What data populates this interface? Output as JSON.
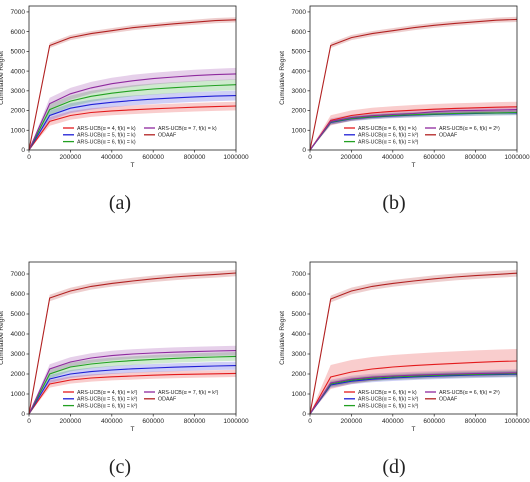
{
  "figure": {
    "captions": [
      "(a)",
      "(b)",
      "(c)",
      "(d)"
    ]
  },
  "chart_data": [
    {
      "type": "line",
      "caption": "(a)",
      "xlabel": "T",
      "ylabel": "Cumulative Regret",
      "xlim": [
        0,
        1000000
      ],
      "ylim": [
        0,
        7300
      ],
      "x_ticks": [
        0,
        200000,
        400000,
        600000,
        800000,
        1000000
      ],
      "x_tick_labels": [
        "0",
        "200000",
        "400000",
        "600000",
        "800000",
        "1000000"
      ],
      "y_ticks": [
        0,
        1000,
        2000,
        3000,
        4000,
        5000,
        6000,
        7000
      ],
      "y_tick_labels": [
        "0",
        "1000",
        "2000",
        "3000",
        "4000",
        "5000",
        "6000",
        "7000"
      ],
      "legend_position": "lower-center",
      "legend_columns": 2,
      "x": [
        0,
        100000,
        200000,
        300000,
        400000,
        500000,
        600000,
        700000,
        800000,
        900000,
        1000000
      ],
      "series": [
        {
          "name": "ARS-UCB(α = 4, f(k) = k)",
          "color": "#e31a1c",
          "values": [
            0,
            1450,
            1750,
            1900,
            1980,
            2040,
            2090,
            2130,
            2170,
            2200,
            2230
          ],
          "band": 220
        },
        {
          "name": "ARS-UCB(α = 5, f(k) = k)",
          "color": "#1f1fd6",
          "values": [
            0,
            1750,
            2120,
            2300,
            2420,
            2510,
            2580,
            2640,
            2690,
            2730,
            2760
          ],
          "band": 250
        },
        {
          "name": "ARS-UCB(α = 6, f(k) = k)",
          "color": "#22a022",
          "values": [
            0,
            2050,
            2480,
            2720,
            2880,
            3000,
            3090,
            3160,
            3220,
            3270,
            3310
          ],
          "band": 280
        },
        {
          "name": "ARS-UCB(α = 7, f(k) = k)",
          "color": "#8e2a9e",
          "values": [
            0,
            2350,
            2850,
            3150,
            3360,
            3510,
            3620,
            3700,
            3770,
            3820,
            3860
          ],
          "band": 300
        },
        {
          "name": "ODAAF",
          "color": "#b22222",
          "values": [
            0,
            5300,
            5700,
            5900,
            6050,
            6200,
            6300,
            6400,
            6480,
            6560,
            6600
          ],
          "band": 130
        }
      ]
    },
    {
      "type": "line",
      "caption": "(b)",
      "xlabel": "T",
      "ylabel": "Cumulative Regret",
      "xlim": [
        0,
        1000000
      ],
      "ylim": [
        0,
        7300
      ],
      "x_ticks": [
        0,
        200000,
        400000,
        600000,
        800000,
        1000000
      ],
      "x_tick_labels": [
        "0",
        "200000",
        "400000",
        "600000",
        "800000",
        "1000000"
      ],
      "y_ticks": [
        0,
        1000,
        2000,
        3000,
        4000,
        5000,
        6000,
        7000
      ],
      "y_tick_labels": [
        "0",
        "1000",
        "2000",
        "3000",
        "4000",
        "5000",
        "6000",
        "7000"
      ],
      "legend_position": "lower-center",
      "legend_columns": 2,
      "x": [
        0,
        100000,
        200000,
        300000,
        400000,
        500000,
        600000,
        700000,
        800000,
        900000,
        1000000
      ],
      "series": [
        {
          "name": "ARS-UCB(α = 6, f(k) = k)",
          "color": "#e31a1c",
          "values": [
            0,
            1500,
            1750,
            1880,
            1960,
            2020,
            2070,
            2110,
            2140,
            2170,
            2190
          ],
          "band": 260
        },
        {
          "name": "ARS-UCB(α = 6, f(k) = k²)",
          "color": "#1f1fd6",
          "values": [
            0,
            1400,
            1580,
            1670,
            1730,
            1770,
            1800,
            1830,
            1850,
            1870,
            1880
          ],
          "band": 120
        },
        {
          "name": "ARS-UCB(α = 6, f(k) = k³)",
          "color": "#22a022",
          "values": [
            0,
            1420,
            1600,
            1690,
            1750,
            1790,
            1820,
            1850,
            1870,
            1880,
            1900
          ],
          "band": 120
        },
        {
          "name": "ARS-UCB(α = 6, f(k) = 2ᵏ)",
          "color": "#8e2a9e",
          "values": [
            0,
            1450,
            1640,
            1740,
            1800,
            1850,
            1940,
            1990,
            2010,
            2030,
            2050
          ],
          "band": 150
        },
        {
          "name": "ODAAF",
          "color": "#b22222",
          "values": [
            0,
            5300,
            5700,
            5900,
            6050,
            6200,
            6320,
            6420,
            6500,
            6580,
            6620
          ],
          "band": 130
        }
      ]
    },
    {
      "type": "line",
      "caption": "(c)",
      "xlabel": "T",
      "ylabel": "Cumulative Regret",
      "xlim": [
        0,
        1000000
      ],
      "ylim": [
        0,
        7600
      ],
      "x_ticks": [
        0,
        200000,
        400000,
        600000,
        800000,
        1000000
      ],
      "x_tick_labels": [
        "0",
        "200000",
        "400000",
        "600000",
        "800000",
        "1000000"
      ],
      "y_ticks": [
        0,
        1000,
        2000,
        3000,
        4000,
        5000,
        6000,
        7000
      ],
      "y_tick_labels": [
        "0",
        "1000",
        "2000",
        "3000",
        "4000",
        "5000",
        "6000",
        "7000"
      ],
      "legend_position": "lower-center",
      "legend_columns": 2,
      "x": [
        0,
        100000,
        200000,
        300000,
        400000,
        500000,
        600000,
        700000,
        800000,
        900000,
        1000000
      ],
      "series": [
        {
          "name": "ARS-UCB(α = 4, f(k) = k²)",
          "color": "#e31a1c",
          "values": [
            0,
            1500,
            1700,
            1800,
            1860,
            1900,
            1940,
            1970,
            1990,
            2010,
            2030
          ],
          "band": 180
        },
        {
          "name": "ARS-UCB(α = 5, f(k) = k²)",
          "color": "#1f1fd6",
          "values": [
            0,
            1750,
            2000,
            2120,
            2200,
            2260,
            2300,
            2340,
            2370,
            2400,
            2420
          ],
          "band": 200
        },
        {
          "name": "ARS-UCB(α = 6, f(k) = k²)",
          "color": "#22a022",
          "values": [
            0,
            2000,
            2350,
            2500,
            2600,
            2670,
            2730,
            2780,
            2820,
            2850,
            2880
          ],
          "band": 220
        },
        {
          "name": "ARS-UCB(α = 7, f(k) = k²)",
          "color": "#8e2a9e",
          "values": [
            0,
            2250,
            2600,
            2800,
            2920,
            3000,
            3050,
            3090,
            3120,
            3150,
            3170
          ],
          "band": 240
        },
        {
          "name": "ODAAF",
          "color": "#b22222",
          "values": [
            0,
            5800,
            6150,
            6380,
            6530,
            6650,
            6760,
            6850,
            6920,
            6980,
            7050
          ],
          "band": 160
        }
      ]
    },
    {
      "type": "line",
      "caption": "(d)",
      "xlabel": "T",
      "ylabel": "Cumulative Regret",
      "xlim": [
        0,
        1000000
      ],
      "ylim": [
        0,
        7600
      ],
      "x_ticks": [
        0,
        200000,
        400000,
        600000,
        800000,
        1000000
      ],
      "x_tick_labels": [
        "0",
        "200000",
        "400000",
        "600000",
        "800000",
        "1000000"
      ],
      "y_ticks": [
        0,
        1000,
        2000,
        3000,
        4000,
        5000,
        6000,
        7000
      ],
      "y_tick_labels": [
        "0",
        "1000",
        "2000",
        "3000",
        "4000",
        "5000",
        "6000",
        "7000"
      ],
      "legend_position": "lower-center",
      "legend_columns": 2,
      "x": [
        0,
        100000,
        200000,
        300000,
        400000,
        500000,
        600000,
        700000,
        800000,
        900000,
        1000000
      ],
      "series": [
        {
          "name": "ARS-UCB(α = 6, f(k) = k)",
          "color": "#e31a1c",
          "values": [
            0,
            1850,
            2100,
            2250,
            2350,
            2420,
            2480,
            2530,
            2580,
            2620,
            2650
          ],
          "band": 600
        },
        {
          "name": "ARS-UCB(α = 6, f(k) = k²)",
          "color": "#1f1fd6",
          "values": [
            0,
            1450,
            1640,
            1740,
            1800,
            1850,
            1890,
            1920,
            1950,
            1970,
            1990
          ],
          "band": 150
        },
        {
          "name": "ARS-UCB(α = 6, f(k) = k³)",
          "color": "#22a022",
          "values": [
            0,
            1500,
            1690,
            1790,
            1850,
            1890,
            1930,
            1960,
            1980,
            2000,
            2020
          ],
          "band": 150
        },
        {
          "name": "ARS-UCB(α = 6, f(k) = 2ᵏ)",
          "color": "#8e2a9e",
          "values": [
            0,
            1550,
            1740,
            1840,
            1900,
            1940,
            1970,
            2000,
            2020,
            2040,
            2060
          ],
          "band": 170
        },
        {
          "name": "ODAAF",
          "color": "#b22222",
          "values": [
            0,
            5750,
            6150,
            6380,
            6530,
            6650,
            6760,
            6850,
            6920,
            6980,
            7040
          ],
          "band": 170
        }
      ]
    }
  ]
}
